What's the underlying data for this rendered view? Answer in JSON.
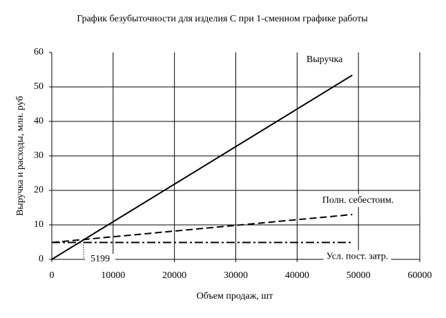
{
  "chart_data": {
    "type": "line",
    "title": "График безубыточности для изделия С при 1-сменном графике работы",
    "x_label": "Объем продаж, шт",
    "y_label": "Выручка и расходы, млн. руб",
    "x": [
      0,
      49000
    ],
    "series": [
      {
        "name": "Выручка",
        "color": "#000000",
        "dash": "solid",
        "values": [
          0,
          53.4
        ]
      },
      {
        "name": "Полн. себестоим.",
        "color": "#000000",
        "dash": "dash",
        "values": [
          4.9,
          13
        ]
      },
      {
        "name": "Усл. пост. затр.",
        "color": "#000000",
        "dash": "dashdot",
        "values": [
          4.9,
          4.9
        ]
      }
    ],
    "break_even": {
      "x": 5199,
      "y": 5.7
    },
    "xlim": [
      0,
      60000
    ],
    "xticks": [
      0,
      10000,
      20000,
      30000,
      40000,
      50000,
      60000
    ],
    "ylim": [
      0,
      60
    ],
    "yticks": [
      0,
      10,
      20,
      30,
      40,
      50,
      60
    ],
    "grid": true
  }
}
